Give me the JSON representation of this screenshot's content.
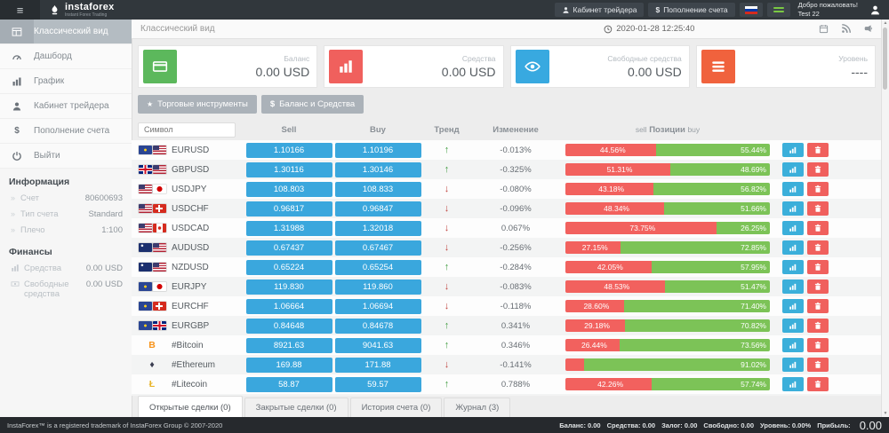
{
  "topbar": {
    "brand": "instaforex",
    "brand_sub": "Instant Forex Trading",
    "trader_cabinet": "Кабинет трейдера",
    "deposit": "Пополнение счета",
    "welcome_line1": "Добро пожаловать!",
    "welcome_line2": "Test 22"
  },
  "sidebar": {
    "items": [
      {
        "id": "classic",
        "icon": "table-icon",
        "label": "Классический вид",
        "active": true
      },
      {
        "id": "dashboard",
        "icon": "dashboard-icon",
        "label": "Дашборд",
        "active": false
      },
      {
        "id": "chart",
        "icon": "chart-icon",
        "label": "График",
        "active": false
      },
      {
        "id": "cabinet",
        "icon": "user-icon",
        "label": "Кабинет трейдера",
        "active": false
      },
      {
        "id": "deposit",
        "icon": "dollar-icon",
        "label": "Пополнение счета",
        "active": false
      },
      {
        "id": "logout",
        "icon": "power-icon",
        "label": "Выйти",
        "active": false
      }
    ],
    "info_title": "Информация",
    "info_rows": [
      {
        "label": "Счет",
        "value": "80600693"
      },
      {
        "label": "Тип счета",
        "value": "Standard"
      },
      {
        "label": "Плечо",
        "value": "1:100"
      }
    ],
    "finance_title": "Финансы",
    "finance_rows": [
      {
        "icon": "chart-icon",
        "label": "Средства",
        "value": "0.00 USD"
      },
      {
        "icon": "banknote-icon",
        "label": "Свободные средства",
        "value": "0.00 USD"
      }
    ]
  },
  "main": {
    "page_title": "Классический вид",
    "timestamp": "2020-01-28 12:25:40",
    "cards": [
      {
        "id": "balance",
        "icon": "credit-card-icon",
        "color": "#5cb85c",
        "label": "Баланс",
        "value": "0.00 USD"
      },
      {
        "id": "equity",
        "icon": "bar-chart-icon",
        "color": "#f0605d",
        "label": "Средства",
        "value": "0.00 USD"
      },
      {
        "id": "free-margin",
        "icon": "eye-icon",
        "color": "#38a9e0",
        "label": "Свободные средства",
        "value": "0.00 USD"
      },
      {
        "id": "level",
        "icon": "menu-icon",
        "color": "#f0623d",
        "label": "Уровень",
        "value": "----"
      }
    ],
    "toolbar": [
      {
        "id": "instruments",
        "icon": "star-icon",
        "label": "Торговые инструменты"
      },
      {
        "id": "balance-funds",
        "icon": "dollar-icon",
        "label": "Баланс и Средства"
      }
    ],
    "table": {
      "symbol_placeholder": "Символ",
      "headers": {
        "sell": "Sell",
        "buy": "Buy",
        "trend": "Тренд",
        "change": "Изменение",
        "positions_left": "sell",
        "positions_mid": "Позиции",
        "positions_right": "buy"
      },
      "rows": [
        {
          "symbol": "EURUSD",
          "flags": [
            "eu",
            "us"
          ],
          "sell": "1.10166",
          "buy": "1.10196",
          "trend": "up",
          "change": "-0.013%",
          "sell_pct": 44.56,
          "buy_pct": 55.44,
          "sell_label": "44.56%",
          "buy_label": "55.44%"
        },
        {
          "symbol": "GBPUSD",
          "flags": [
            "gb",
            "us"
          ],
          "sell": "1.30116",
          "buy": "1.30146",
          "trend": "up",
          "change": "-0.325%",
          "sell_pct": 51.31,
          "buy_pct": 48.69,
          "sell_label": "51.31%",
          "buy_label": "48.69%"
        },
        {
          "symbol": "USDJPY",
          "flags": [
            "us",
            "jp"
          ],
          "sell": "108.803",
          "buy": "108.833",
          "trend": "down",
          "change": "-0.080%",
          "sell_pct": 43.18,
          "buy_pct": 56.82,
          "sell_label": "43.18%",
          "buy_label": "56.82%"
        },
        {
          "symbol": "USDCHF",
          "flags": [
            "us",
            "ch"
          ],
          "sell": "0.96817",
          "buy": "0.96847",
          "trend": "down",
          "change": "-0.096%",
          "sell_pct": 48.34,
          "buy_pct": 51.66,
          "sell_label": "48.34%",
          "buy_label": "51.66%"
        },
        {
          "symbol": "USDCAD",
          "flags": [
            "us",
            "ca"
          ],
          "sell": "1.31988",
          "buy": "1.32018",
          "trend": "down",
          "change": "0.067%",
          "sell_pct": 73.75,
          "buy_pct": 26.25,
          "sell_label": "73.75%",
          "buy_label": "26.25%"
        },
        {
          "symbol": "AUDUSD",
          "flags": [
            "au",
            "us"
          ],
          "sell": "0.67437",
          "buy": "0.67467",
          "trend": "down",
          "change": "-0.256%",
          "sell_pct": 27.15,
          "buy_pct": 72.85,
          "sell_label": "27.15%",
          "buy_label": "72.85%"
        },
        {
          "symbol": "NZDUSD",
          "flags": [
            "nz",
            "us"
          ],
          "sell": "0.65224",
          "buy": "0.65254",
          "trend": "up",
          "change": "-0.284%",
          "sell_pct": 42.05,
          "buy_pct": 57.95,
          "sell_label": "42.05%",
          "buy_label": "57.95%"
        },
        {
          "symbol": "EURJPY",
          "flags": [
            "eu",
            "jp"
          ],
          "sell": "119.830",
          "buy": "119.860",
          "trend": "down",
          "change": "-0.083%",
          "sell_pct": 48.53,
          "buy_pct": 51.47,
          "sell_label": "48.53%",
          "buy_label": "51.47%"
        },
        {
          "symbol": "EURCHF",
          "flags": [
            "eu",
            "ch"
          ],
          "sell": "1.06664",
          "buy": "1.06694",
          "trend": "down",
          "change": "-0.118%",
          "sell_pct": 28.6,
          "buy_pct": 71.4,
          "sell_label": "28.60%",
          "buy_label": "71.40%"
        },
        {
          "symbol": "EURGBP",
          "flags": [
            "eu",
            "gb"
          ],
          "sell": "0.84648",
          "buy": "0.84678",
          "trend": "up",
          "change": "0.341%",
          "sell_pct": 29.18,
          "buy_pct": 70.82,
          "sell_label": "29.18%",
          "buy_label": "70.82%"
        },
        {
          "symbol": "#Bitcoin",
          "crypto": "btc",
          "crypto_icon": "bitcoin-icon",
          "crypto_color": "#f7931a",
          "sell": "8921.63",
          "buy": "9041.63",
          "trend": "up",
          "change": "0.346%",
          "sell_pct": 26.44,
          "buy_pct": 73.56,
          "sell_label": "26.44%",
          "buy_label": "73.56%"
        },
        {
          "symbol": "#Ethereum",
          "crypto": "eth",
          "crypto_icon": "ethereum-icon",
          "crypto_color": "#3a3d50",
          "sell": "169.88",
          "buy": "171.88",
          "trend": "down",
          "change": "-0.141%",
          "sell_pct": 8.98,
          "buy_pct": 91.02,
          "sell_label": "",
          "buy_label": "91.02%"
        },
        {
          "symbol": "#Litecoin",
          "crypto": "ltc",
          "crypto_icon": "litecoin-icon",
          "crypto_color": "#e8b42a",
          "sell": "58.87",
          "buy": "59.57",
          "trend": "up",
          "change": "0.788%",
          "sell_pct": 42.26,
          "buy_pct": 57.74,
          "sell_label": "42.26%",
          "buy_label": "57.74%"
        }
      ],
      "partial_row": {
        "sell_pct": 3.5,
        "buy_pct": 96.5
      }
    },
    "tabs": [
      {
        "label": "Открытые сделки (0)",
        "active": true
      },
      {
        "label": "Закрытые сделки (0)",
        "active": false
      },
      {
        "label": "История счета (0)",
        "active": false
      },
      {
        "label": "Журнал (3)",
        "active": false
      }
    ]
  },
  "footer": {
    "copyright": "InstaForex™ is a registered trademark of InstaForex Group © 2007-2020",
    "stats": [
      {
        "label": "Баланс:",
        "value": "0.00"
      },
      {
        "label": "Средства:",
        "value": "0.00"
      },
      {
        "label": "Залог:",
        "value": "0.00"
      },
      {
        "label": "Свободно:",
        "value": "0.00"
      },
      {
        "label": "Уровень:",
        "value": "0.00%"
      },
      {
        "label": "Прибыль:",
        "value": ""
      }
    ],
    "profit_value": "0.00"
  },
  "colors": {
    "accent_blue": "#3aa7dd",
    "action_blue": "#3bafda",
    "action_red": "#f0605d",
    "bar_red": "#f2615e",
    "bar_green": "#7cc357",
    "topbar": "#31373c",
    "footer": "#26292d"
  }
}
